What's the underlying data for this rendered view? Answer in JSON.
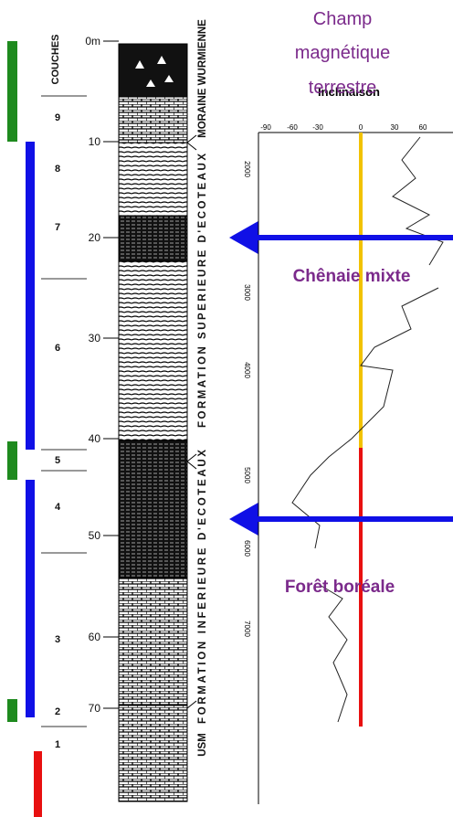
{
  "column": {
    "heading": "COUCHES",
    "layers": [
      "9",
      "8",
      "7",
      "6",
      "5",
      "4",
      "3",
      "2",
      "1"
    ],
    "depths": [
      "0m",
      "10",
      "20",
      "30",
      "40",
      "50",
      "60",
      "70"
    ],
    "formations": [
      "MORAINE WURMIENNE",
      "FORMATION SUPERIEURE D'ECOTEAUX",
      "FORMATION INFERIEURE D'ECOTEAUX",
      "USM"
    ]
  },
  "plot": {
    "title_lines": [
      "Champ",
      "magnétique",
      "terrestre"
    ],
    "axis_title": "Inclinaison",
    "x_ticks": [
      "-90",
      "-60",
      "-30",
      "0",
      "30",
      "60"
    ],
    "y_ticks": [
      "2000",
      "3000",
      "4000",
      "5000",
      "6000",
      "7000"
    ],
    "zones": [
      "Chênaie mixte",
      "Forêt boréale"
    ]
  }
}
